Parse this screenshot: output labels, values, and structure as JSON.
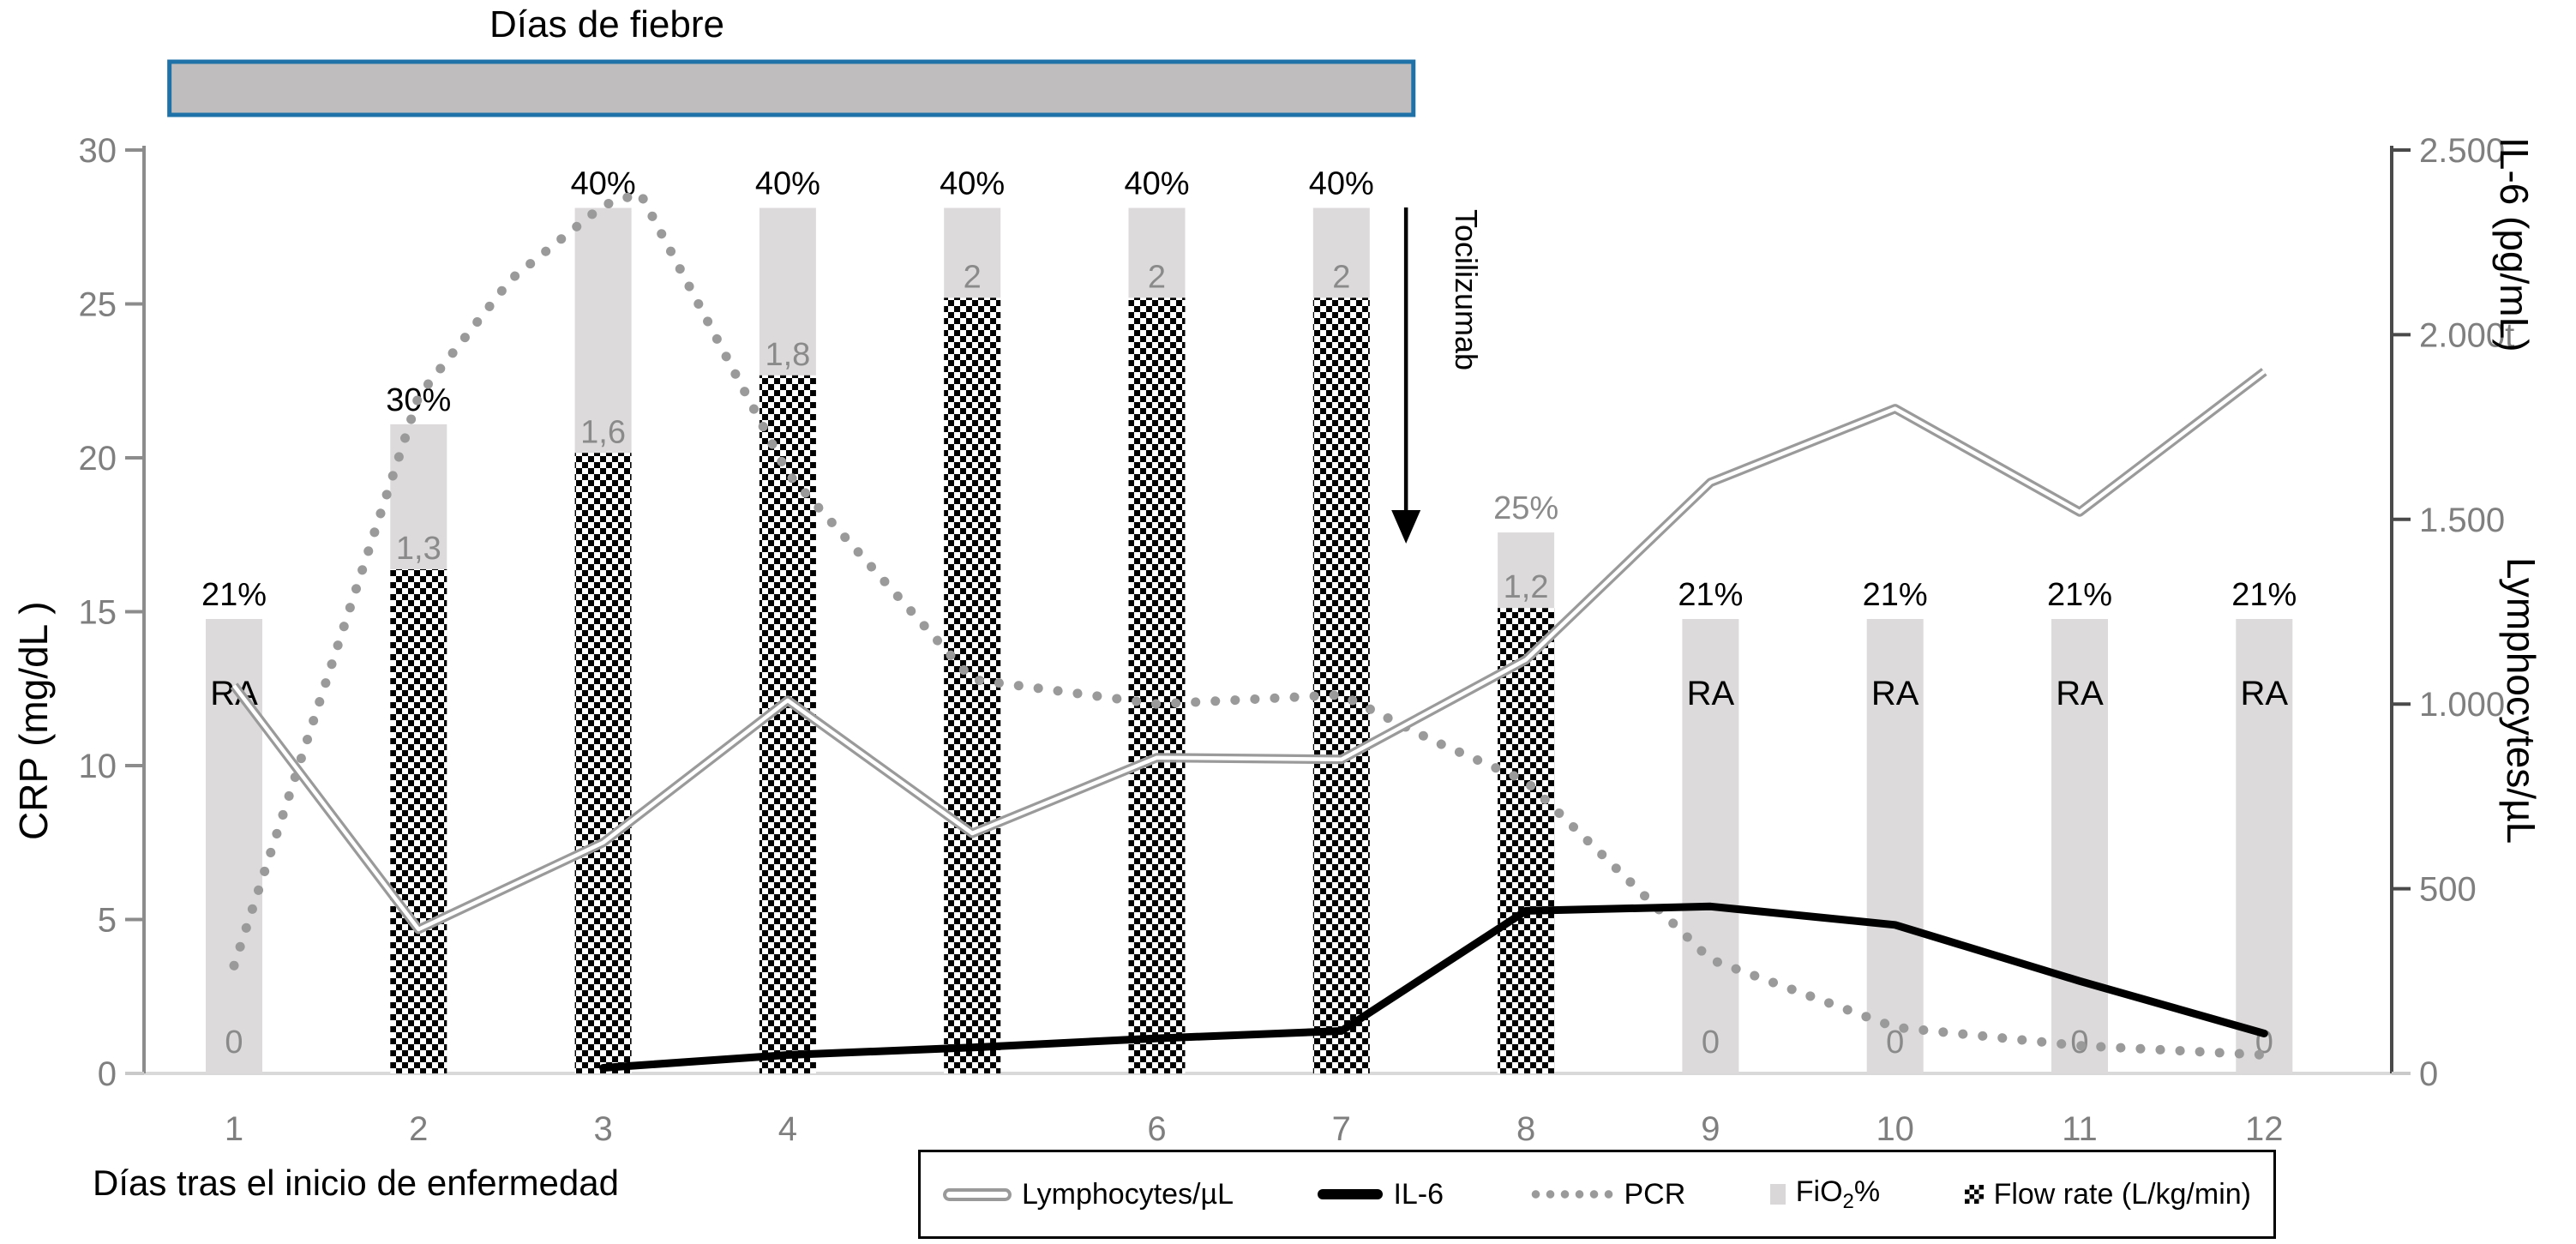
{
  "fever": {
    "title": "Días de fiebre",
    "from_day": 0.65,
    "to_day": 7.39
  },
  "annotation": {
    "label": "Tocilizumab"
  },
  "axes": {
    "left": {
      "title": "CRP (mg/dL )",
      "ticks": [
        {
          "v": 0,
          "label": "0"
        },
        {
          "v": 5,
          "label": "5"
        },
        {
          "v": 10,
          "label": "10"
        },
        {
          "v": 15,
          "label": "15"
        },
        {
          "v": 20,
          "label": "20"
        },
        {
          "v": 25,
          "label": "25"
        },
        {
          "v": 30,
          "label": "30"
        }
      ]
    },
    "right": {
      "title_top": "IL-6 (pg/mL)",
      "title_bottom": "Lymphocytes/µL",
      "ticks": [
        {
          "v": 0,
          "label": "0"
        },
        {
          "v": 500,
          "label": "500"
        },
        {
          "v": 1000,
          "label": "1.000"
        },
        {
          "v": 1500,
          "label": "1.500"
        },
        {
          "v": 2000,
          "label": "2.000t"
        },
        {
          "v": 2500,
          "label": "2.500"
        }
      ]
    },
    "x": {
      "title": "Días tras el inicio de enfermedad",
      "ticks": [
        {
          "d": 1,
          "label": "1"
        },
        {
          "d": 2,
          "label": "2"
        },
        {
          "d": 3,
          "label": "3"
        },
        {
          "d": 4,
          "label": "4"
        },
        {
          "d": 5,
          "label": ""
        },
        {
          "d": 6,
          "label": "6"
        },
        {
          "d": 7,
          "label": "7"
        },
        {
          "d": 8,
          "label": "8"
        },
        {
          "d": 9,
          "label": "9"
        },
        {
          "d": 10,
          "label": "10"
        },
        {
          "d": 11,
          "label": "11"
        },
        {
          "d": 12,
          "label": "12"
        }
      ]
    }
  },
  "legend": {
    "items": [
      {
        "label": "Lymphocytes/µL"
      },
      {
        "label": "IL-6"
      },
      {
        "label": "PCR"
      },
      {
        "label": "FiO",
        "sub": "2",
        "suffix": "%"
      },
      {
        "label": "Flow rate (L/kg/min)"
      }
    ]
  },
  "colors": {
    "fever_fill": "#bfbdbd",
    "fever_border": "#1f72a8",
    "bar_gray": "#dcdada",
    "line_gray": "#9a9a9a",
    "axis_gray": "#8c8c8c",
    "baseline_gray": "#d9d9d9",
    "tick_text": "#7f7f7f",
    "muted_text": "#8a8a8a",
    "black": "#000000"
  },
  "chart_data": {
    "type": "combo bar+line, dual axis",
    "title": "Días de fiebre",
    "xlabel": "Días tras el inicio de enfermedad",
    "ylabel_left": "CRP (mg/dL )",
    "ylabel_right": [
      "IL-6 (pg/mL)",
      "Lymphocytes/µL"
    ],
    "ylim_left": [
      0,
      30
    ],
    "ylim_right": [
      0,
      2500
    ],
    "x_days": [
      1,
      2,
      3,
      4,
      5,
      6,
      7,
      8,
      9,
      10,
      11,
      12
    ],
    "tocilizumab_day": 7.35,
    "fever_bar_days": [
      0.65,
      7.39
    ],
    "scales": {
      "fio2_to_crp": 0.703,
      "flow_to_crp": 12.6
    },
    "days": [
      {
        "day": 1,
        "fio2_pct": 21,
        "fio2_label": "21%",
        "fio2_label_muted": false,
        "flow": 0,
        "flow_label": "",
        "ra": "RA",
        "zero_label": "0"
      },
      {
        "day": 2,
        "fio2_pct": 30,
        "fio2_label": "30%",
        "fio2_label_muted": false,
        "flow": 1.3,
        "flow_label": "1,3",
        "ra": "",
        "zero_label": ""
      },
      {
        "day": 3,
        "fio2_pct": 40,
        "fio2_label": "40%",
        "fio2_label_muted": false,
        "flow": 1.6,
        "flow_label": "1,6",
        "ra": "",
        "zero_label": ""
      },
      {
        "day": 4,
        "fio2_pct": 40,
        "fio2_label": "40%",
        "fio2_label_muted": false,
        "flow": 1.8,
        "flow_label": "1,8",
        "ra": "",
        "zero_label": ""
      },
      {
        "day": 5,
        "fio2_pct": 40,
        "fio2_label": "40%",
        "fio2_label_muted": false,
        "flow": 2,
        "flow_label": "2",
        "ra": "",
        "zero_label": ""
      },
      {
        "day": 6,
        "fio2_pct": 40,
        "fio2_label": "40%",
        "fio2_label_muted": false,
        "flow": 2,
        "flow_label": "2",
        "ra": "",
        "zero_label": ""
      },
      {
        "day": 7,
        "fio2_pct": 40,
        "fio2_label": "40%",
        "fio2_label_muted": false,
        "flow": 2,
        "flow_label": "2",
        "ra": "",
        "zero_label": ""
      },
      {
        "day": 8,
        "fio2_pct": 25,
        "fio2_label": "25%",
        "fio2_label_muted": true,
        "flow": 1.2,
        "flow_label": "1,2",
        "ra": "",
        "zero_label": ""
      },
      {
        "day": 9,
        "fio2_pct": 21,
        "fio2_label": "21%",
        "fio2_label_muted": false,
        "flow": 0,
        "flow_label": "",
        "ra": "RA",
        "zero_label": "0"
      },
      {
        "day": 10,
        "fio2_pct": 21,
        "fio2_label": "21%",
        "fio2_label_muted": false,
        "flow": 0,
        "flow_label": "",
        "ra": "RA",
        "zero_label": "0"
      },
      {
        "day": 11,
        "fio2_pct": 21,
        "fio2_label": "21%",
        "fio2_label_muted": false,
        "flow": 0,
        "flow_label": "",
        "ra": "RA",
        "zero_label": "0"
      },
      {
        "day": 12,
        "fio2_pct": 21,
        "fio2_label": "21%",
        "fio2_label_muted": false,
        "flow": 0,
        "flow_label": "",
        "ra": "RA",
        "zero_label": "0"
      }
    ],
    "series": [
      {
        "name": "PCR",
        "axis": "left",
        "unit": "mg/dL",
        "style": "dotted-gray",
        "points": [
          [
            1,
            3.5
          ],
          [
            2,
            22
          ],
          [
            2.5,
            25.8
          ],
          [
            3,
            28.2
          ],
          [
            3.2,
            28.6
          ],
          [
            4,
            19.5
          ],
          [
            5,
            12.8
          ],
          [
            6,
            12
          ],
          [
            7,
            12.3
          ],
          [
            7.5,
            10.8
          ],
          [
            8,
            9.5
          ],
          [
            9,
            3.7
          ],
          [
            10,
            1.5
          ],
          [
            11,
            0.9
          ],
          [
            12,
            0.6
          ]
        ]
      },
      {
        "name": "IL-6",
        "axis": "right",
        "unit": "pg/mL",
        "style": "thick-black",
        "points": [
          [
            3,
            15
          ],
          [
            4,
            50
          ],
          [
            5,
            70
          ],
          [
            6,
            95
          ],
          [
            7,
            115
          ],
          [
            8,
            440
          ],
          [
            9,
            452
          ],
          [
            10,
            402
          ],
          [
            11,
            250
          ],
          [
            12,
            108
          ]
        ]
      },
      {
        "name": "Lymphocytes/µL",
        "axis": "right",
        "unit": "cells/µL",
        "style": "double-gray",
        "points": [
          [
            1,
            1050
          ],
          [
            2,
            390
          ],
          [
            3,
            625
          ],
          [
            4,
            1010
          ],
          [
            5,
            650
          ],
          [
            6,
            855
          ],
          [
            7,
            850
          ],
          [
            8,
            1120
          ],
          [
            9,
            1600
          ],
          [
            10,
            1800
          ],
          [
            11,
            1520
          ],
          [
            12,
            1900
          ]
        ]
      }
    ]
  }
}
